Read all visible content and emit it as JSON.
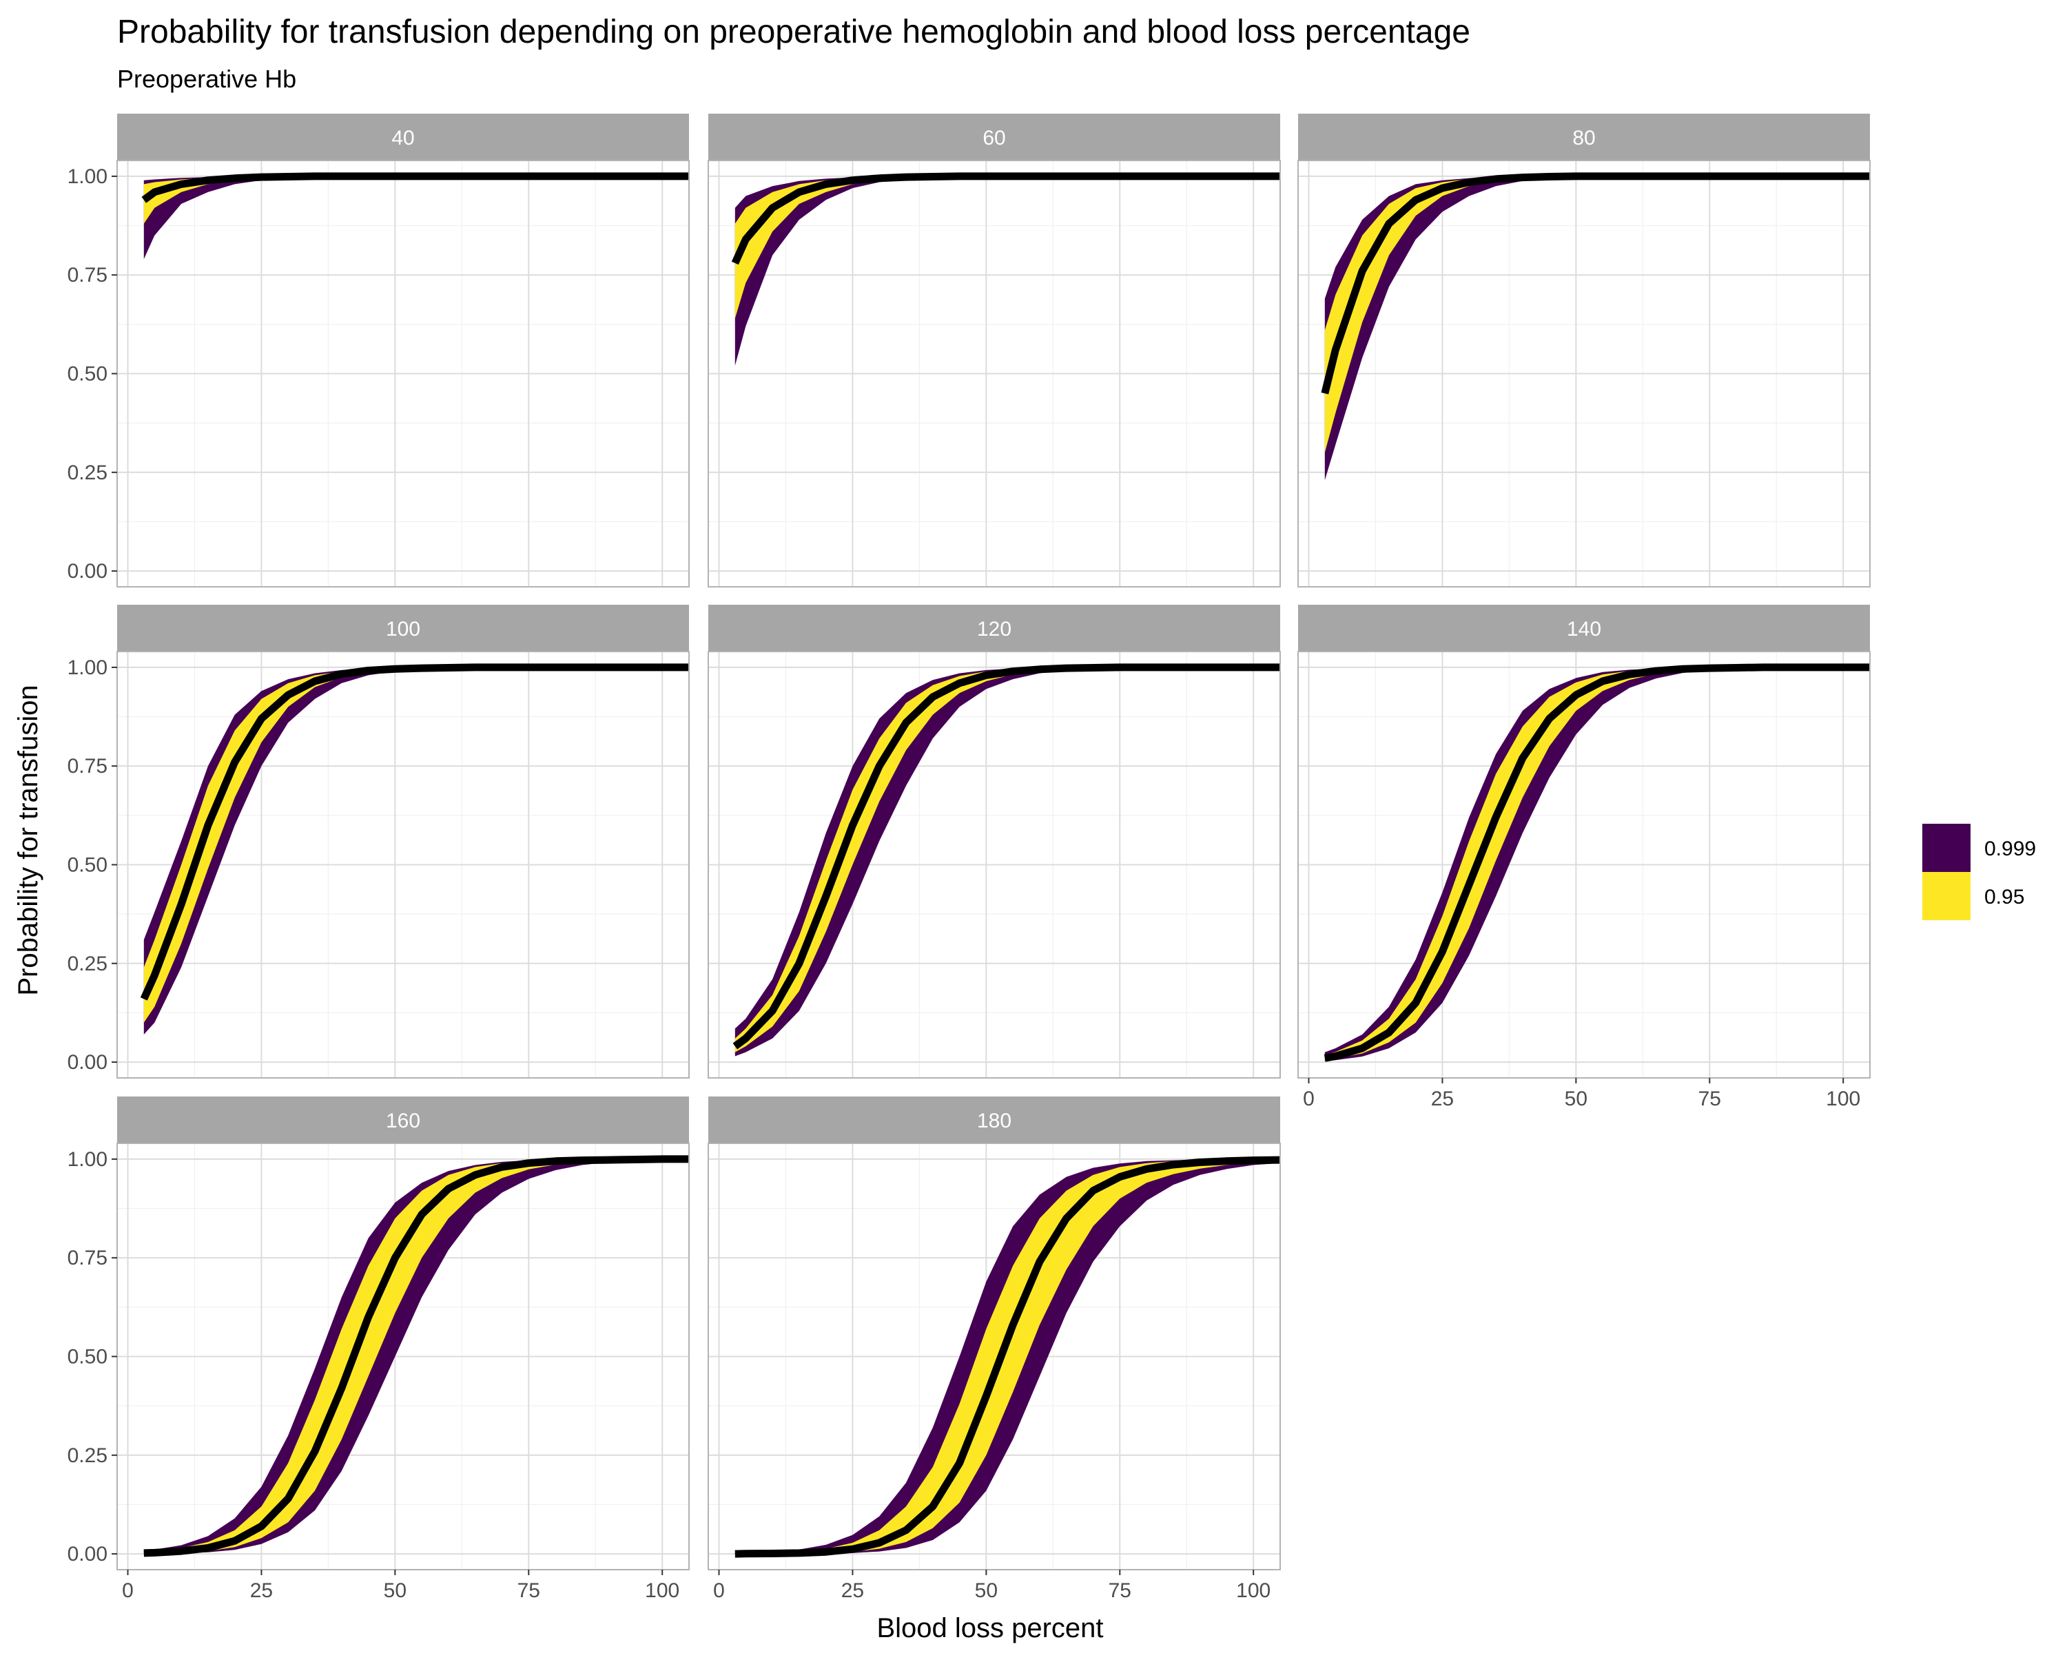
{
  "chart_data": {
    "type": "line",
    "title": "Probability for transfusion depending on preoperative hemoglobin and blood loss percentage",
    "subtitle": "Preoperative Hb",
    "xlabel": "Blood loss percent",
    "ylabel": "Probability for transfusion",
    "xlim": [
      -2,
      105
    ],
    "ylim": [
      -0.04,
      1.04
    ],
    "x_ticks": [
      0,
      25,
      50,
      75,
      100
    ],
    "x_tick_labels": [
      "0",
      "25",
      "50",
      "75",
      "100"
    ],
    "y_ticks": [
      0,
      0.25,
      0.5,
      0.75,
      1.0
    ],
    "y_tick_labels": [
      "0.00",
      "0.25",
      "0.50",
      "0.75",
      "1.00"
    ],
    "grid": true,
    "legend_position": "right",
    "legend": [
      {
        "label": "0.999",
        "color": "#440154"
      },
      {
        "label": "0.95",
        "color": "#FDE725"
      }
    ],
    "line_color": "#000000",
    "x": [
      3,
      5,
      10,
      15,
      20,
      25,
      30,
      35,
      40,
      45,
      50,
      55,
      60,
      65,
      70,
      75,
      80,
      85,
      90,
      95,
      100,
      105
    ],
    "panels": [
      {
        "label": "40",
        "fit": [
          0.94,
          0.96,
          0.98,
          0.99,
          0.995,
          0.998,
          0.999,
          1.0,
          1.0,
          1.0,
          1.0,
          1.0,
          1.0,
          1.0,
          1.0,
          1.0,
          1.0,
          1.0,
          1.0,
          1.0,
          1.0,
          1.0
        ],
        "lo95": [
          0.88,
          0.92,
          0.96,
          0.98,
          0.99,
          0.996,
          0.998,
          0.999,
          1.0,
          1.0,
          1.0,
          1.0,
          1.0,
          1.0,
          1.0,
          1.0,
          1.0,
          1.0,
          1.0,
          1.0,
          1.0,
          1.0
        ],
        "hi95": [
          0.98,
          0.985,
          0.992,
          0.996,
          0.998,
          0.999,
          1.0,
          1.0,
          1.0,
          1.0,
          1.0,
          1.0,
          1.0,
          1.0,
          1.0,
          1.0,
          1.0,
          1.0,
          1.0,
          1.0,
          1.0,
          1.0
        ],
        "lo999": [
          0.79,
          0.85,
          0.93,
          0.96,
          0.98,
          0.99,
          0.995,
          0.998,
          0.999,
          1.0,
          1.0,
          1.0,
          1.0,
          1.0,
          1.0,
          1.0,
          1.0,
          1.0,
          1.0,
          1.0,
          1.0,
          1.0
        ],
        "hi999": [
          0.99,
          0.992,
          0.996,
          0.998,
          0.999,
          1.0,
          1.0,
          1.0,
          1.0,
          1.0,
          1.0,
          1.0,
          1.0,
          1.0,
          1.0,
          1.0,
          1.0,
          1.0,
          1.0,
          1.0,
          1.0,
          1.0
        ]
      },
      {
        "label": "60",
        "fit": [
          0.78,
          0.84,
          0.92,
          0.96,
          0.98,
          0.99,
          0.995,
          0.998,
          0.999,
          1.0,
          1.0,
          1.0,
          1.0,
          1.0,
          1.0,
          1.0,
          1.0,
          1.0,
          1.0,
          1.0,
          1.0,
          1.0
        ],
        "lo95": [
          0.64,
          0.73,
          0.86,
          0.93,
          0.96,
          0.98,
          0.99,
          0.995,
          0.998,
          0.999,
          1.0,
          1.0,
          1.0,
          1.0,
          1.0,
          1.0,
          1.0,
          1.0,
          1.0,
          1.0,
          1.0,
          1.0
        ],
        "hi95": [
          0.88,
          0.92,
          0.96,
          0.98,
          0.99,
          0.995,
          0.998,
          0.999,
          1.0,
          1.0,
          1.0,
          1.0,
          1.0,
          1.0,
          1.0,
          1.0,
          1.0,
          1.0,
          1.0,
          1.0,
          1.0,
          1.0
        ],
        "lo999": [
          0.52,
          0.62,
          0.8,
          0.89,
          0.94,
          0.97,
          0.985,
          0.993,
          0.997,
          0.999,
          1.0,
          1.0,
          1.0,
          1.0,
          1.0,
          1.0,
          1.0,
          1.0,
          1.0,
          1.0,
          1.0,
          1.0
        ],
        "hi999": [
          0.92,
          0.95,
          0.975,
          0.988,
          0.994,
          0.997,
          0.999,
          1.0,
          1.0,
          1.0,
          1.0,
          1.0,
          1.0,
          1.0,
          1.0,
          1.0,
          1.0,
          1.0,
          1.0,
          1.0,
          1.0,
          1.0
        ]
      },
      {
        "label": "80",
        "fit": [
          0.45,
          0.56,
          0.76,
          0.88,
          0.94,
          0.97,
          0.985,
          0.993,
          0.997,
          0.999,
          1.0,
          1.0,
          1.0,
          1.0,
          1.0,
          1.0,
          1.0,
          1.0,
          1.0,
          1.0,
          1.0,
          1.0
        ],
        "lo95": [
          0.3,
          0.4,
          0.63,
          0.8,
          0.9,
          0.95,
          0.975,
          0.988,
          0.995,
          0.998,
          0.999,
          1.0,
          1.0,
          1.0,
          1.0,
          1.0,
          1.0,
          1.0,
          1.0,
          1.0,
          1.0,
          1.0
        ],
        "hi95": [
          0.61,
          0.7,
          0.85,
          0.93,
          0.97,
          0.985,
          0.993,
          0.997,
          0.999,
          1.0,
          1.0,
          1.0,
          1.0,
          1.0,
          1.0,
          1.0,
          1.0,
          1.0,
          1.0,
          1.0,
          1.0,
          1.0
        ],
        "lo999": [
          0.23,
          0.32,
          0.54,
          0.72,
          0.84,
          0.91,
          0.95,
          0.975,
          0.988,
          0.995,
          0.998,
          0.999,
          1.0,
          1.0,
          1.0,
          1.0,
          1.0,
          1.0,
          1.0,
          1.0,
          1.0,
          1.0
        ],
        "hi999": [
          0.69,
          0.77,
          0.89,
          0.95,
          0.98,
          0.99,
          0.995,
          0.998,
          0.999,
          1.0,
          1.0,
          1.0,
          1.0,
          1.0,
          1.0,
          1.0,
          1.0,
          1.0,
          1.0,
          1.0,
          1.0,
          1.0
        ]
      },
      {
        "label": "100",
        "fit": [
          0.16,
          0.22,
          0.4,
          0.6,
          0.76,
          0.87,
          0.93,
          0.965,
          0.983,
          0.992,
          0.996,
          0.998,
          0.999,
          1.0,
          1.0,
          1.0,
          1.0,
          1.0,
          1.0,
          1.0,
          1.0,
          1.0
        ],
        "lo95": [
          0.1,
          0.14,
          0.3,
          0.49,
          0.67,
          0.81,
          0.9,
          0.95,
          0.975,
          0.988,
          0.994,
          0.997,
          0.999,
          1.0,
          1.0,
          1.0,
          1.0,
          1.0,
          1.0,
          1.0,
          1.0,
          1.0
        ],
        "hi95": [
          0.24,
          0.31,
          0.5,
          0.7,
          0.84,
          0.92,
          0.96,
          0.98,
          0.99,
          0.995,
          0.998,
          0.999,
          1.0,
          1.0,
          1.0,
          1.0,
          1.0,
          1.0,
          1.0,
          1.0,
          1.0,
          1.0
        ],
        "lo999": [
          0.07,
          0.1,
          0.24,
          0.42,
          0.6,
          0.75,
          0.86,
          0.92,
          0.96,
          0.98,
          0.99,
          0.995,
          0.998,
          0.999,
          1.0,
          1.0,
          1.0,
          1.0,
          1.0,
          1.0,
          1.0,
          1.0
        ],
        "hi999": [
          0.31,
          0.38,
          0.56,
          0.75,
          0.88,
          0.94,
          0.97,
          0.985,
          0.993,
          0.997,
          0.999,
          1.0,
          1.0,
          1.0,
          1.0,
          1.0,
          1.0,
          1.0,
          1.0,
          1.0,
          1.0,
          1.0
        ]
      },
      {
        "label": "120",
        "fit": [
          0.04,
          0.06,
          0.13,
          0.25,
          0.42,
          0.6,
          0.75,
          0.86,
          0.925,
          0.96,
          0.98,
          0.99,
          0.995,
          0.998,
          0.999,
          1.0,
          1.0,
          1.0,
          1.0,
          1.0,
          1.0,
          1.0
        ],
        "lo95": [
          0.025,
          0.04,
          0.09,
          0.18,
          0.33,
          0.5,
          0.66,
          0.79,
          0.88,
          0.935,
          0.965,
          0.982,
          0.991,
          0.996,
          0.998,
          0.999,
          1.0,
          1.0,
          1.0,
          1.0,
          1.0,
          1.0
        ],
        "hi95": [
          0.06,
          0.085,
          0.17,
          0.32,
          0.51,
          0.69,
          0.82,
          0.91,
          0.955,
          0.978,
          0.99,
          0.995,
          0.998,
          0.999,
          1.0,
          1.0,
          1.0,
          1.0,
          1.0,
          1.0,
          1.0,
          1.0
        ],
        "lo999": [
          0.015,
          0.025,
          0.06,
          0.13,
          0.25,
          0.4,
          0.56,
          0.7,
          0.82,
          0.9,
          0.945,
          0.97,
          0.985,
          0.993,
          0.997,
          0.999,
          1.0,
          1.0,
          1.0,
          1.0,
          1.0,
          1.0
        ],
        "hi999": [
          0.085,
          0.11,
          0.21,
          0.38,
          0.58,
          0.75,
          0.87,
          0.935,
          0.968,
          0.985,
          0.993,
          0.997,
          0.999,
          1.0,
          1.0,
          1.0,
          1.0,
          1.0,
          1.0,
          1.0,
          1.0,
          1.0
        ]
      },
      {
        "label": "140",
        "fit": [
          0.01,
          0.015,
          0.035,
          0.075,
          0.15,
          0.28,
          0.45,
          0.62,
          0.77,
          0.87,
          0.93,
          0.965,
          0.982,
          0.991,
          0.996,
          0.998,
          0.999,
          1.0,
          1.0,
          1.0,
          1.0,
          1.0
        ],
        "lo95": [
          0.005,
          0.009,
          0.022,
          0.05,
          0.1,
          0.2,
          0.34,
          0.51,
          0.67,
          0.8,
          0.89,
          0.94,
          0.968,
          0.984,
          0.992,
          0.996,
          0.998,
          0.999,
          1.0,
          1.0,
          1.0,
          1.0
        ],
        "hi95": [
          0.018,
          0.026,
          0.055,
          0.11,
          0.21,
          0.37,
          0.56,
          0.73,
          0.85,
          0.925,
          0.962,
          0.982,
          0.991,
          0.996,
          0.998,
          0.999,
          1.0,
          1.0,
          1.0,
          1.0,
          1.0,
          1.0
        ],
        "lo999": [
          0.003,
          0.005,
          0.014,
          0.035,
          0.075,
          0.15,
          0.27,
          0.42,
          0.58,
          0.72,
          0.83,
          0.905,
          0.948,
          0.972,
          0.986,
          0.993,
          0.997,
          0.999,
          1.0,
          1.0,
          1.0,
          1.0
        ],
        "hi999": [
          0.025,
          0.035,
          0.07,
          0.14,
          0.26,
          0.43,
          0.62,
          0.78,
          0.89,
          0.945,
          0.973,
          0.988,
          0.994,
          0.997,
          0.999,
          1.0,
          1.0,
          1.0,
          1.0,
          1.0,
          1.0,
          1.0
        ]
      },
      {
        "label": "160",
        "fit": [
          0.002,
          0.003,
          0.007,
          0.015,
          0.033,
          0.07,
          0.14,
          0.26,
          0.42,
          0.6,
          0.75,
          0.86,
          0.925,
          0.96,
          0.98,
          0.99,
          0.995,
          0.997,
          0.998,
          0.999,
          1.0,
          1.0
        ],
        "lo95": [
          0.0005,
          0.001,
          0.003,
          0.007,
          0.017,
          0.04,
          0.08,
          0.16,
          0.29,
          0.45,
          0.61,
          0.75,
          0.85,
          0.915,
          0.952,
          0.974,
          0.986,
          0.992,
          0.996,
          0.998,
          0.999,
          1.0
        ],
        "hi95": [
          0.005,
          0.007,
          0.015,
          0.03,
          0.06,
          0.12,
          0.23,
          0.39,
          0.57,
          0.73,
          0.85,
          0.92,
          0.96,
          0.98,
          0.99,
          0.995,
          0.998,
          0.999,
          1.0,
          1.0,
          1.0,
          1.0
        ],
        "lo999": [
          0.0,
          0.0005,
          0.0015,
          0.004,
          0.01,
          0.025,
          0.055,
          0.11,
          0.21,
          0.35,
          0.5,
          0.65,
          0.77,
          0.86,
          0.915,
          0.95,
          0.972,
          0.985,
          0.992,
          0.996,
          0.998,
          0.999
        ],
        "hi999": [
          0.008,
          0.011,
          0.022,
          0.045,
          0.09,
          0.17,
          0.3,
          0.47,
          0.65,
          0.8,
          0.89,
          0.94,
          0.97,
          0.985,
          0.993,
          0.997,
          0.999,
          1.0,
          1.0,
          1.0,
          1.0,
          1.0
        ]
      },
      {
        "label": "180",
        "fit": [
          0.0,
          0.0005,
          0.001,
          0.002,
          0.005,
          0.012,
          0.028,
          0.06,
          0.12,
          0.23,
          0.4,
          0.58,
          0.74,
          0.85,
          0.92,
          0.955,
          0.975,
          0.986,
          0.992,
          0.995,
          0.997,
          0.998
        ],
        "lo95": [
          0.0,
          0.0,
          0.0003,
          0.0008,
          0.002,
          0.005,
          0.013,
          0.03,
          0.065,
          0.13,
          0.25,
          0.41,
          0.58,
          0.72,
          0.83,
          0.9,
          0.94,
          0.962,
          0.976,
          0.985,
          0.99,
          0.993
        ],
        "hi95": [
          0.001,
          0.0015,
          0.003,
          0.006,
          0.013,
          0.028,
          0.06,
          0.12,
          0.22,
          0.38,
          0.57,
          0.73,
          0.85,
          0.92,
          0.96,
          0.98,
          0.99,
          0.995,
          0.998,
          0.999,
          1.0,
          1.0
        ],
        "lo999": [
          0.0,
          0.0,
          0.0001,
          0.0003,
          0.0008,
          0.002,
          0.006,
          0.015,
          0.035,
          0.08,
          0.16,
          0.29,
          0.45,
          0.61,
          0.74,
          0.83,
          0.895,
          0.935,
          0.96,
          0.975,
          0.985,
          0.99
        ],
        "hi999": [
          0.002,
          0.003,
          0.006,
          0.011,
          0.023,
          0.048,
          0.095,
          0.18,
          0.32,
          0.5,
          0.69,
          0.83,
          0.91,
          0.955,
          0.978,
          0.989,
          0.995,
          0.997,
          0.999,
          1.0,
          1.0,
          1.0
        ]
      }
    ]
  }
}
